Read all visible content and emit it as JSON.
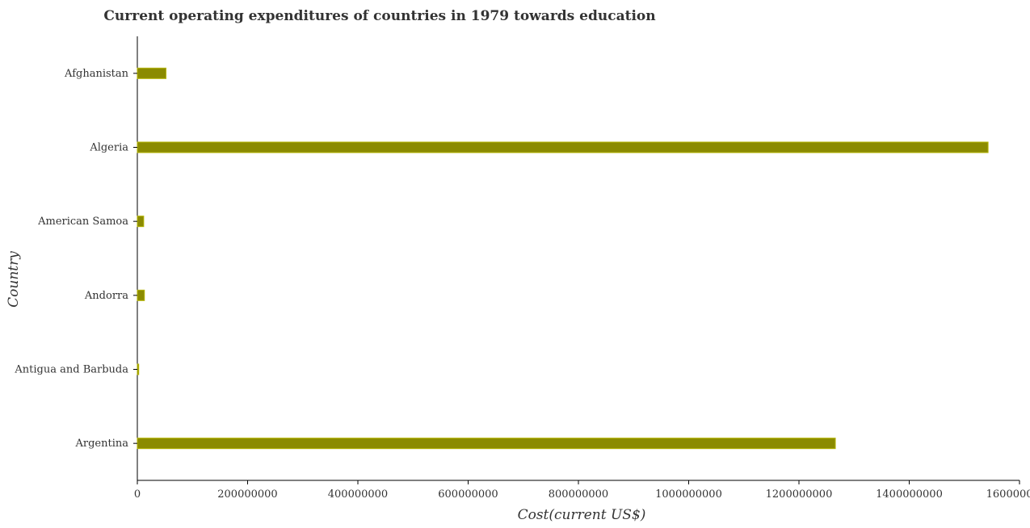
{
  "colors": {
    "bar_fill": "#8b8b00",
    "bar_stroke": "#b3b300",
    "axis": "#000000",
    "text": "#333333",
    "background": "#ffffff"
  },
  "chart_data": {
    "type": "bar",
    "orientation": "horizontal",
    "title": "Current operating expenditures of countries in 1979 towards education",
    "xlabel": "Cost(current US$)",
    "ylabel": "Country",
    "categories": [
      "Afghanistan",
      "Algeria",
      "American Samoa",
      "Andorra",
      "Antigua and Barbuda",
      "Argentina"
    ],
    "values": [
      52000000,
      1543000000,
      11500000,
      12800000,
      2500000,
      1266000000
    ],
    "xlim": [
      0,
      1600000000
    ],
    "xticks": [
      0,
      200000000,
      400000000,
      600000000,
      800000000,
      1000000000,
      1200000000,
      1400000000,
      1600000000
    ],
    "xtick_labels": [
      "0",
      "200000000",
      "400000000",
      "600000000",
      "800000000",
      "1000000000",
      "1200000000",
      "1400000000",
      "1600000000"
    ],
    "grid": false,
    "legend": "none"
  }
}
